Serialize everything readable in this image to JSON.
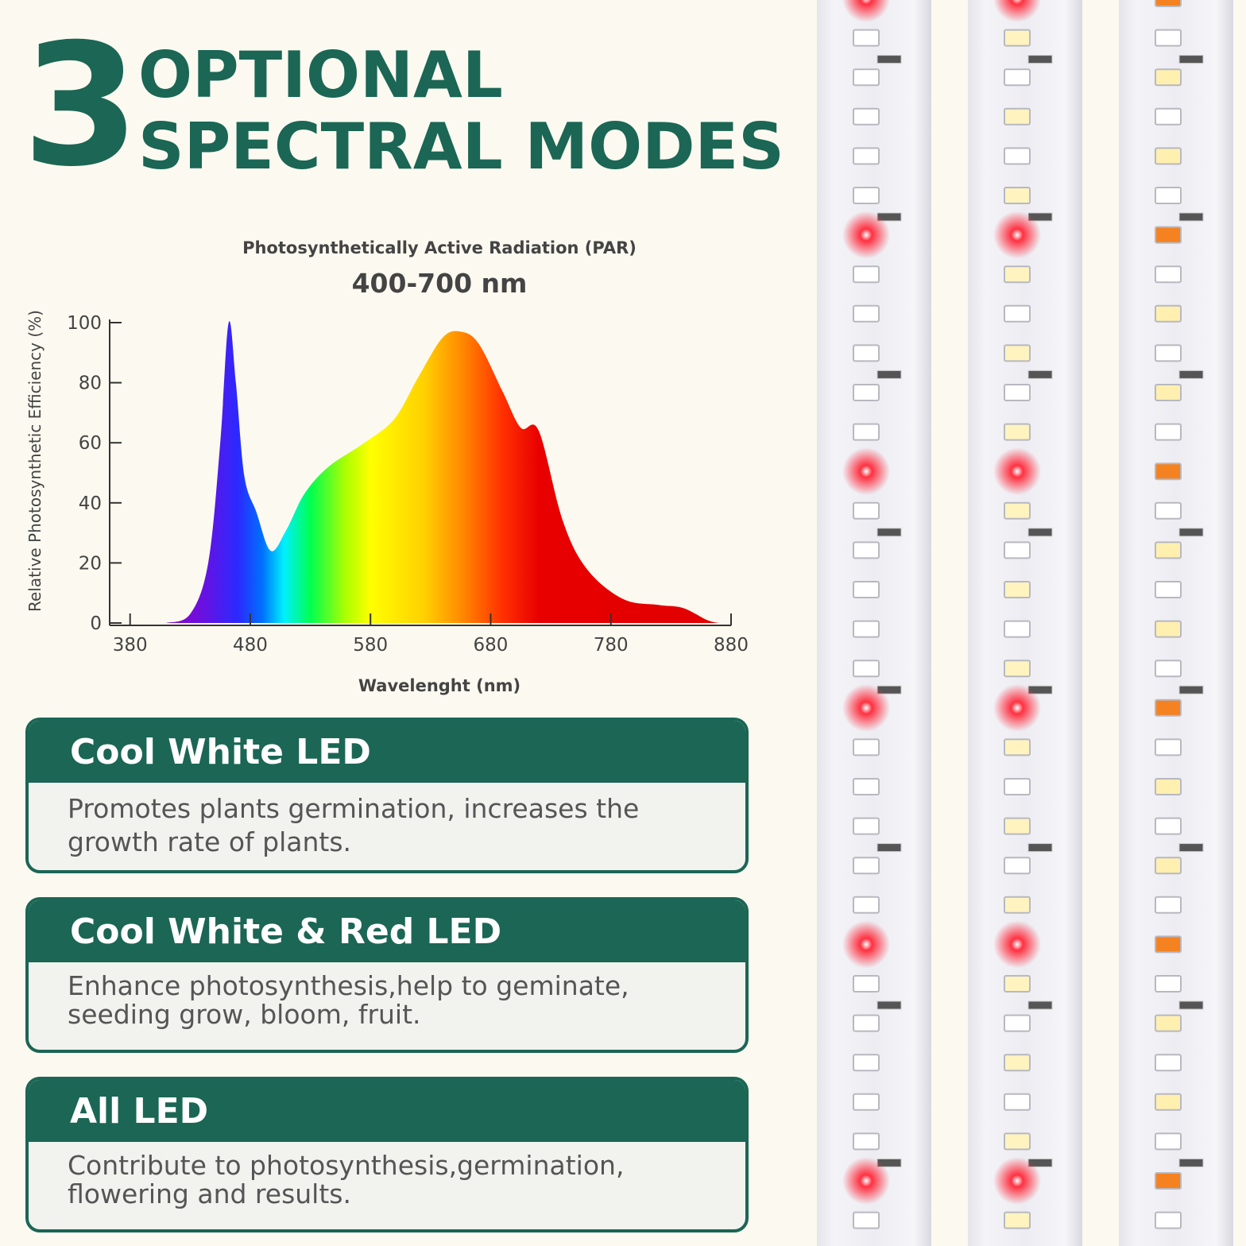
{
  "header": {
    "number": "3",
    "line1": "OPTIONAL",
    "line2": "SPECTRAL MODES"
  },
  "chart_data": {
    "type": "area",
    "title": "Photosynthetically Active Radiation (PAR)",
    "subtitle": "400-700 nm",
    "x_label": "Wavelenght (nm)",
    "y_label": "Relative Photosynthetic Efficiency (%)",
    "x": [
      410,
      430,
      445,
      455,
      462,
      468,
      475,
      485,
      497,
      510,
      525,
      545,
      575,
      600,
      620,
      640,
      655,
      670,
      690,
      705,
      720,
      740,
      760,
      790,
      820,
      840,
      860,
      870
    ],
    "values": [
      0,
      3,
      20,
      60,
      100,
      80,
      49,
      37,
      24,
      31,
      43,
      52,
      60,
      68,
      82,
      95,
      97,
      93,
      77,
      65,
      64,
      34,
      18,
      8,
      6,
      5,
      1,
      0
    ],
    "xlim": [
      363,
      880
    ],
    "xticks": [
      380,
      480,
      580,
      680,
      780,
      880
    ],
    "ylim": [
      0,
      100
    ],
    "yticks": [
      0,
      20,
      40,
      60,
      80,
      100
    ],
    "grid": false
  },
  "modes": [
    {
      "title": "Cool White LED",
      "lines": [
        "Promotes plants germination, increases the",
        "growth rate of plants."
      ]
    },
    {
      "title": "Cool White & Red LED",
      "lines": [
        "Enhance photosynthesis,help to geminate,",
        "seeding grow, bloom, fruit."
      ]
    },
    {
      "title": "All LED",
      "lines": [
        "Contribute to photosynthesis,germination,",
        "flowering and results."
      ]
    }
  ]
}
